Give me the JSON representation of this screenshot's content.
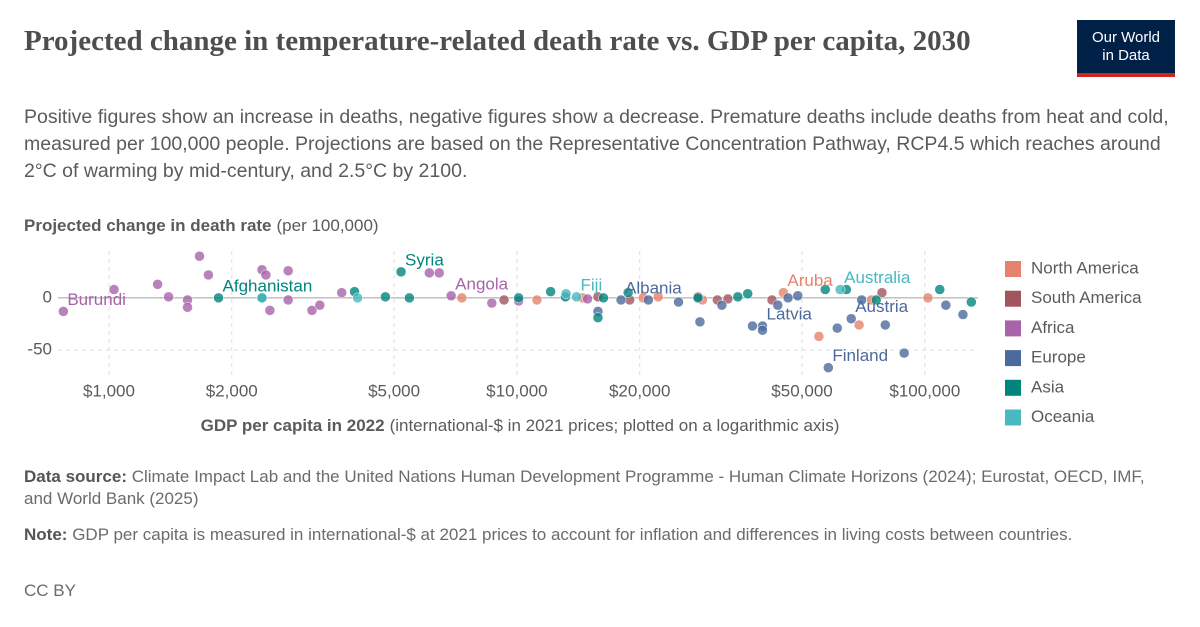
{
  "chart_data": {
    "type": "scatter",
    "title": "Projected change in temperature-related death rate vs. GDP per capita, 2030",
    "subtitle": "Positive figures show an increase in deaths, negative figures show a decrease. Premature deaths include deaths from heat and cold, measured per 100,000 people. Projections are based on the Representative Concentration Pathway, RCP4.5 which reaches around 2°C of warming by mid-century, and 2.5°C by 2100.",
    "y_label": "Projected change in death rate",
    "y_label_unit": "(per 100,000)",
    "x_label": "GDP per capita in 2022",
    "x_label_unit": "(international-$ in 2021 prices; plotted on a logarithmic axis)",
    "x_log": true,
    "grid": true,
    "legend": "right",
    "xlim": [
      750,
      135000
    ],
    "xticks": [
      {
        "value": 1000,
        "label": "$1,000"
      },
      {
        "value": 2000,
        "label": "$2,000"
      },
      {
        "value": 5000,
        "label": "$5,000"
      },
      {
        "value": 10000,
        "label": "$10,000"
      },
      {
        "value": 20000,
        "label": "$20,000"
      },
      {
        "value": 50000,
        "label": "$50,000"
      },
      {
        "value": 100000,
        "label": "$100,000"
      }
    ],
    "ylim": [
      -75,
      45
    ],
    "yticks": [
      -50,
      0
    ],
    "series": [
      {
        "name": "North America",
        "color": "#e6836c",
        "x": [
          45000,
          7330,
          11200,
          14500,
          20400,
          22200,
          28500,
          55000,
          69000,
          74000,
          101800
        ],
        "values": [
          5,
          0,
          -2,
          0,
          0,
          1,
          -2,
          -37,
          -26,
          -2,
          0
        ],
        "point_labels": [
          "Aruba",
          null,
          null,
          null,
          null,
          null,
          null,
          null,
          null,
          null,
          null
        ]
      },
      {
        "name": "South America",
        "color": "#a2555f",
        "x": [
          9300,
          15800,
          18900,
          27800,
          31000,
          32900,
          42200,
          78500
        ],
        "values": [
          -2,
          1,
          -2,
          1,
          -2,
          -1,
          -2,
          5
        ]
      },
      {
        "name": "Africa",
        "color": "#a863a9",
        "x": [
          773,
          6900,
          1029,
          1316,
          1400,
          1558,
          1558,
          1667,
          1753,
          2372,
          2425,
          2480,
          2750,
          2750,
          3145,
          3287,
          3720,
          6100,
          6450,
          8680,
          10100,
          14900
        ],
        "values": [
          -13,
          2,
          8,
          13,
          1,
          -2,
          -9,
          40,
          22,
          27,
          22,
          -12,
          26,
          -2,
          -12,
          -7,
          5,
          24,
          24,
          -5,
          -3,
          -1
        ],
        "point_labels": [
          "Burundi",
          "Angola",
          null,
          null,
          null,
          null,
          null,
          null,
          null,
          null,
          null,
          null,
          null,
          null,
          null,
          null,
          null,
          null,
          null,
          null,
          null,
          null
        ]
      },
      {
        "name": "Europe",
        "color": "#4c6a9c",
        "x": [
          18000,
          40000,
          66000,
          58000,
          15800,
          21000,
          24900,
          28100,
          31800,
          37800,
          40000,
          43600,
          46200,
          48800,
          61000,
          70000,
          80000,
          89000,
          112600,
          124000
        ],
        "values": [
          -2,
          -27,
          -20,
          -67,
          -13,
          -2,
          -4,
          -23,
          -7,
          -27,
          -31,
          -7,
          0,
          2,
          -29,
          -2,
          -26,
          -53,
          -7,
          -16
        ],
        "point_labels": [
          "Albania",
          "Latvia",
          "Austria",
          "Finland",
          null,
          null,
          null,
          null,
          null,
          null,
          null,
          null,
          null,
          null,
          null,
          null,
          null,
          null,
          null,
          null
        ]
      },
      {
        "name": "Asia",
        "color": "#00847e",
        "x": [
          1856,
          5200,
          2372,
          4000,
          5450,
          4760,
          10100,
          12100,
          13150,
          16300,
          18740,
          27800,
          34800,
          36800,
          57000,
          64200,
          76000,
          108800,
          130000,
          15800
        ],
        "values": [
          0,
          25,
          0,
          6,
          0,
          1,
          0,
          6,
          1,
          0,
          5,
          0,
          1,
          4,
          8,
          8,
          -2,
          8,
          -4,
          -19
        ],
        "point_labels": [
          "Afghanistan",
          "Syria",
          null,
          null,
          null,
          null,
          null,
          null,
          null,
          null,
          null,
          null,
          null,
          null,
          null,
          null,
          null,
          null,
          null,
          null
        ]
      },
      {
        "name": "Oceania",
        "color": "#4ab8c1",
        "x": [
          14000,
          62000,
          2372,
          4070,
          13200
        ],
        "values": [
          1,
          8,
          0,
          0,
          4
        ],
        "point_labels": [
          "Fiji",
          "Australia",
          null,
          null,
          null
        ]
      }
    ],
    "source_label": "Data source:",
    "source": "Climate Impact Lab and the United Nations Human Development Programme - Human Climate Horizons (2024); Eurostat, OECD, IMF, and World Bank (2025)",
    "note_label": "Note:",
    "note": "GDP per capita is measured in international-$ at 2021 prices to account for inflation and differences in living costs between countries.",
    "license": "CC BY",
    "logo": [
      "Our World",
      "in Data"
    ]
  }
}
